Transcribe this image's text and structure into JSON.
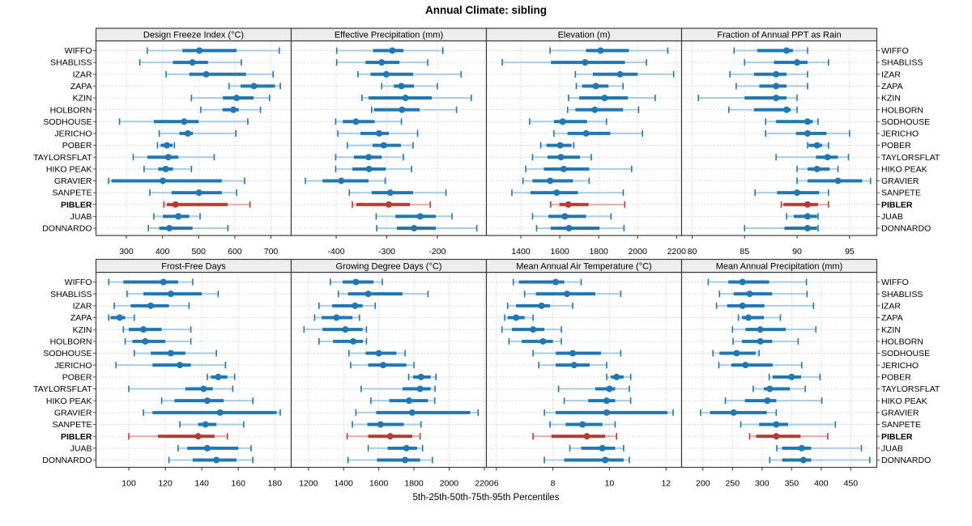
{
  "title": "Annual Climate: sibling",
  "caption": "5th-25th-50th-75th-95th Percentiles",
  "highlighted_station": "PIBLER",
  "colors": {
    "blue": "#1f77b4",
    "blue_light": "#a9cbe4",
    "red": "#b63b32",
    "red_light": "#e3aba6",
    "strip_bg": "#ededed",
    "panel_bg": "#ffffff",
    "grid": "#d8d8d8",
    "border": "#3c3c3c",
    "tick": "#333333",
    "text": "#000000"
  },
  "stations": [
    "WIFFO",
    "SHABLISS",
    "IZAR",
    "ZAPA",
    "KZIN",
    "HOLBORN",
    "SODHOUSE",
    "JERICHO",
    "POBER",
    "TAYLORSFLAT",
    "HIKO PEAK",
    "GRAVIER",
    "SANPETE",
    "PIBLER",
    "JUAB",
    "DONNARDO"
  ],
  "chart_data": {
    "type": "dotplot-interval",
    "percentiles": [
      "5th",
      "25th",
      "50th",
      "75th",
      "95th"
    ],
    "layout": "2 rows x 4 columns of panels, shared station y-axis, PIBLER highlighted in red",
    "panels": [
      {
        "title": "Design Freeze Index (°C)",
        "band": 0,
        "ticks": [
          300,
          400,
          500,
          600,
          700
        ],
        "range": [
          216,
          756
        ],
        "series": [
          [
            358,
            455,
            502,
            605,
            723
          ],
          [
            337,
            429,
            483,
            526,
            618
          ],
          [
            410,
            474,
            521,
            631,
            706
          ],
          [
            584,
            616,
            653,
            711,
            726
          ],
          [
            480,
            567,
            605,
            652,
            696
          ],
          [
            506,
            566,
            596,
            611,
            671
          ],
          [
            281,
            376,
            460,
            500,
            636
          ],
          [
            391,
            447,
            470,
            484,
            603
          ],
          [
            386,
            395,
            412,
            428,
            433
          ],
          [
            319,
            358,
            416,
            444,
            543
          ],
          [
            349,
            388,
            409,
            429,
            480
          ],
          [
            251,
            259,
            401,
            564,
            627
          ],
          [
            365,
            425,
            501,
            564,
            605
          ],
          [
            404,
            412,
            436,
            580,
            642
          ],
          [
            376,
            401,
            444,
            474,
            504
          ],
          [
            361,
            391,
            419,
            483,
            581
          ]
        ]
      },
      {
        "title": "Effective Precipitation (mm)",
        "band": 0,
        "ticks": [
          -400,
          -300,
          -200
        ],
        "range": [
          -489,
          -103
        ],
        "series": [
          [
            -399,
            -327,
            -289,
            -267,
            -189
          ],
          [
            -399,
            -342,
            -310,
            -275,
            -219
          ],
          [
            -357,
            -332,
            -301,
            -248,
            -153
          ],
          [
            -310,
            -286,
            -271,
            -246,
            -200
          ],
          [
            -349,
            -336,
            -263,
            -211,
            -133
          ],
          [
            -330,
            -325,
            -270,
            -235,
            -162
          ],
          [
            -401,
            -387,
            -361,
            -324,
            -271
          ],
          [
            -397,
            -352,
            -315,
            -296,
            -239
          ],
          [
            -378,
            -328,
            -306,
            -272,
            -248
          ],
          [
            -401,
            -365,
            -336,
            -310,
            -267
          ],
          [
            -401,
            -368,
            -335,
            -302,
            -251
          ],
          [
            -461,
            -427,
            -390,
            -336,
            -303
          ],
          [
            -374,
            -330,
            -293,
            -248,
            -183
          ],
          [
            -368,
            -360,
            -296,
            -254,
            -214
          ],
          [
            -321,
            -283,
            -234,
            -203,
            -171
          ],
          [
            -320,
            -280,
            -246,
            -203,
            -122
          ]
        ]
      },
      {
        "title": "Elevation (m)",
        "band": 0,
        "ticks": [
          1400,
          1600,
          1800,
          2000,
          2200
        ],
        "range": [
          1223,
          2226
        ],
        "series": [
          [
            1550,
            1735,
            1810,
            1955,
            2155
          ],
          [
            1305,
            1555,
            1730,
            1935,
            2045
          ],
          [
            1680,
            1770,
            1910,
            2000,
            2185
          ],
          [
            1685,
            1715,
            1785,
            1850,
            1925
          ],
          [
            1645,
            1700,
            1830,
            1950,
            2090
          ],
          [
            1640,
            1680,
            1780,
            1925,
            2005
          ],
          [
            1445,
            1570,
            1615,
            1740,
            1840
          ],
          [
            1570,
            1640,
            1735,
            1860,
            2025
          ],
          [
            1502,
            1532,
            1602,
            1660,
            1672
          ],
          [
            1460,
            1537,
            1606,
            1704,
            1762
          ],
          [
            1425,
            1518,
            1620,
            1751,
            1969
          ],
          [
            1411,
            1460,
            1551,
            1668,
            1751
          ],
          [
            1354,
            1449,
            1584,
            1693,
            1926
          ],
          [
            1553,
            1598,
            1644,
            1748,
            1934
          ],
          [
            1460,
            1542,
            1626,
            1735,
            1863
          ],
          [
            1481,
            1553,
            1647,
            1804,
            1930
          ]
        ]
      },
      {
        "title": "Fraction of Annual PPT as Rain",
        "band": 0,
        "ticks": [
          80,
          85,
          90,
          95
        ],
        "range": [
          79.0,
          97.6
        ],
        "series": [
          [
            84.0,
            86.2,
            89.0,
            89.6,
            91.0
          ],
          [
            85.0,
            87.8,
            90.0,
            91.0,
            93.0
          ],
          [
            83.6,
            85.9,
            88.0,
            89.0,
            91.0
          ],
          [
            84.2,
            86.4,
            88.0,
            89.0,
            91.0
          ],
          [
            80.6,
            85.0,
            88.0,
            89.0,
            90.0
          ],
          [
            83.5,
            85.9,
            89.0,
            89.4,
            90.0
          ],
          [
            87.0,
            88.0,
            91.0,
            91.5,
            92.0
          ],
          [
            87.0,
            89.9,
            91.0,
            92.8,
            95.0
          ],
          [
            91.0,
            91.1,
            91.9,
            92.4,
            93.0
          ],
          [
            88.0,
            91.8,
            92.9,
            93.9,
            94.9
          ],
          [
            90.0,
            91.0,
            91.9,
            93.1,
            93.9
          ],
          [
            90.0,
            91.0,
            93.9,
            96.2,
            97.0
          ],
          [
            86.0,
            88.1,
            90.0,
            92.1,
            93.0
          ],
          [
            88.5,
            88.7,
            91.0,
            92.0,
            93.0
          ],
          [
            89.0,
            89.7,
            91.0,
            91.9,
            92.0
          ],
          [
            85.0,
            88.8,
            91.0,
            91.9,
            92.0
          ]
        ]
      },
      {
        "title": "Frost-Free Days",
        "band": 1,
        "ticks": [
          100,
          120,
          140,
          160,
          180
        ],
        "range": [
          82,
          189
        ],
        "series": [
          [
            89,
            97,
            119,
            127,
            135
          ],
          [
            99,
            108,
            123,
            140,
            149
          ],
          [
            92,
            101,
            112,
            122,
            133
          ],
          [
            89,
            90,
            95,
            98,
            103
          ],
          [
            97,
            100,
            108,
            118,
            134
          ],
          [
            98,
            102,
            109,
            120,
            134
          ],
          [
            103,
            112,
            123,
            131,
            148
          ],
          [
            93,
            113,
            128,
            134,
            153
          ],
          [
            143,
            145,
            149,
            154,
            158
          ],
          [
            100,
            131,
            141,
            146,
            157
          ],
          [
            118,
            125,
            143,
            152,
            168
          ],
          [
            108,
            113,
            150,
            181,
            183
          ],
          [
            128,
            138,
            142,
            148,
            163
          ],
          [
            100,
            116,
            138,
            147,
            154
          ],
          [
            127,
            132,
            143,
            160,
            167
          ],
          [
            122,
            135,
            148,
            159,
            168
          ]
        ]
      },
      {
        "title": "Growing Degree Days (°C)",
        "band": 1,
        "ticks": [
          1200,
          1400,
          1600,
          1800,
          2000,
          2200
        ],
        "range": [
          1102,
          2212
        ],
        "series": [
          [
            1325,
            1395,
            1470,
            1570,
            1620
          ],
          [
            1370,
            1425,
            1540,
            1735,
            1880
          ],
          [
            1260,
            1335,
            1465,
            1508,
            1580
          ],
          [
            1235,
            1275,
            1360,
            1450,
            1490
          ],
          [
            1175,
            1280,
            1410,
            1508,
            1530
          ],
          [
            1260,
            1340,
            1455,
            1510,
            1530
          ],
          [
            1430,
            1525,
            1600,
            1700,
            1750
          ],
          [
            1440,
            1540,
            1625,
            1757,
            1800
          ],
          [
            1770,
            1795,
            1840,
            1895,
            1925
          ],
          [
            1500,
            1735,
            1835,
            1895,
            1920
          ],
          [
            1555,
            1660,
            1772,
            1880,
            1918
          ],
          [
            1470,
            1585,
            1790,
            2120,
            2165
          ],
          [
            1450,
            1535,
            1610,
            1742,
            1840
          ],
          [
            1420,
            1540,
            1665,
            1790,
            1835
          ],
          [
            1540,
            1650,
            1757,
            1818,
            1849
          ],
          [
            1425,
            1590,
            1750,
            1835,
            1905
          ]
        ]
      },
      {
        "title": "Mean Annual Air Temperature (°C)",
        "band": 1,
        "ticks": [
          6,
          8,
          10,
          12
        ],
        "range": [
          5.65,
          12.55
        ],
        "series": [
          [
            6.6,
            6.8,
            8.1,
            8.4,
            9.0
          ],
          [
            7.0,
            7.4,
            8.5,
            9.5,
            10.4
          ],
          [
            6.4,
            6.7,
            7.6,
            7.9,
            8.7
          ],
          [
            6.3,
            6.4,
            6.7,
            7.0,
            7.3
          ],
          [
            6.2,
            6.55,
            7.3,
            7.7,
            8.3
          ],
          [
            6.45,
            6.9,
            7.65,
            8.0,
            8.3
          ],
          [
            7.3,
            8.1,
            8.7,
            9.7,
            10.4
          ],
          [
            7.5,
            8.1,
            8.75,
            9.3,
            9.9
          ],
          [
            9.9,
            10.05,
            10.25,
            10.5,
            10.75
          ],
          [
            8.2,
            9.5,
            10.0,
            10.2,
            10.7
          ],
          [
            8.4,
            9.25,
            9.9,
            10.2,
            10.75
          ],
          [
            7.7,
            8.1,
            9.9,
            12.05,
            12.25
          ],
          [
            7.9,
            8.45,
            9.05,
            9.75,
            10.2
          ],
          [
            7.3,
            7.95,
            9.2,
            9.85,
            10.25
          ],
          [
            8.6,
            9.0,
            9.75,
            10.2,
            10.5
          ],
          [
            7.7,
            8.4,
            9.85,
            10.5,
            10.7
          ]
        ]
      },
      {
        "title": "Mean Annual Precipitation (mm)",
        "band": 1,
        "ticks": [
          200,
          250,
          300,
          350,
          400,
          450
        ],
        "range": [
          164,
          494
        ],
        "series": [
          [
            209,
            243,
            267,
            312,
            375
          ],
          [
            228,
            252,
            279,
            317,
            376
          ],
          [
            223,
            241,
            267,
            304,
            387
          ],
          [
            260,
            266,
            277,
            303,
            331
          ],
          [
            250,
            272,
            297,
            340,
            391
          ],
          [
            251,
            266,
            297,
            317,
            361
          ],
          [
            217,
            228,
            257,
            289,
            295
          ],
          [
            227,
            248,
            272,
            318,
            367
          ],
          [
            312,
            318,
            350,
            366,
            398
          ],
          [
            285,
            303,
            313,
            347,
            373
          ],
          [
            238,
            271,
            309,
            324,
            401
          ],
          [
            196,
            212,
            252,
            308,
            324
          ],
          [
            264,
            295,
            324,
            344,
            424
          ],
          [
            279,
            290,
            324,
            365,
            411
          ],
          [
            325,
            334,
            367,
            383,
            468
          ],
          [
            313,
            334,
            370,
            383,
            482
          ]
        ]
      }
    ]
  }
}
